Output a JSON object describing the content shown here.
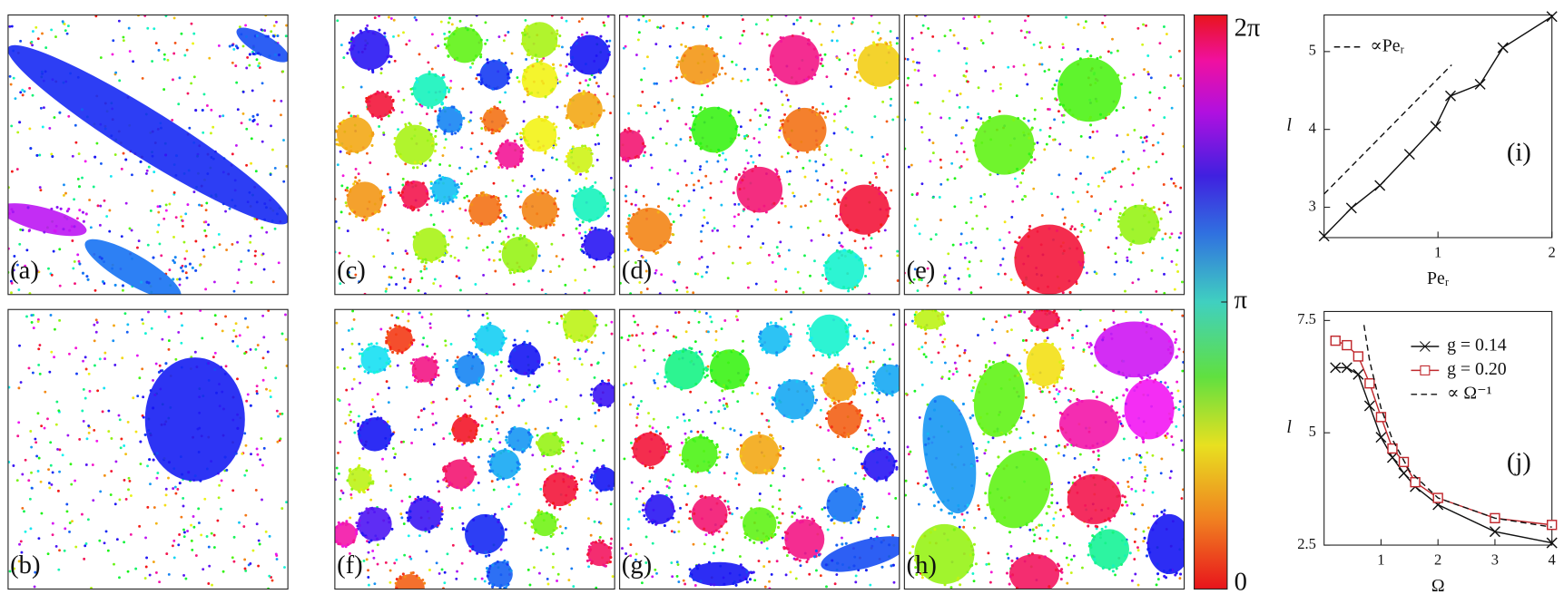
{
  "panels": [
    {
      "label": "(a)"
    },
    {
      "label": "(b)"
    },
    {
      "label": "(c)"
    },
    {
      "label": "(d)"
    },
    {
      "label": "(e)"
    },
    {
      "label": "(f)"
    },
    {
      "label": "(g)"
    },
    {
      "label": "(h)"
    }
  ],
  "colorbar": {
    "lim": [
      0,
      6.2832
    ],
    "ticks": [
      0,
      {
        "value": 3.1416,
        "label": "π"
      },
      {
        "value": 6.2832,
        "label": "2π"
      }
    ]
  },
  "chart_data": [
    {
      "type": "line",
      "xlabel": "Peᵣ",
      "ylabel": "l",
      "annotation": "(i)",
      "xlim": [
        0,
        2
      ],
      "ylim": [
        2.61,
        5.47
      ],
      "xticks": [
        1,
        2
      ],
      "yticks": [
        3,
        4,
        5
      ],
      "series": [
        {
          "color": "#111111",
          "marker": "x",
          "style": "solid",
          "x": [
            0,
            0.24,
            0.49,
            0.75,
            0.98,
            1.11,
            1.37,
            1.57,
            2.0
          ],
          "values": [
            2.63,
            2.99,
            3.28,
            3.68,
            4.04,
            4.43,
            4.58,
            5.05,
            5.45
          ]
        },
        {
          "name": "∝Peᵣ",
          "color": "#111111",
          "marker": "none",
          "style": "dashed",
          "x": [
            0,
            1.12
          ],
          "values": [
            3.17,
            4.83
          ]
        }
      ]
    },
    {
      "type": "line",
      "xlabel": "Ω",
      "ylabel": "l",
      "annotation": "(j)",
      "xlim": [
        0,
        4
      ],
      "ylim": [
        2.5,
        7.7
      ],
      "xticks": [
        1,
        2,
        3,
        4
      ],
      "yticks": [
        2.5,
        5,
        7.5
      ],
      "series": [
        {
          "name": "g = 0.14",
          "color": "#111111",
          "marker": "x",
          "style": "solid",
          "x": [
            0.2,
            0.4,
            0.6,
            0.8,
            1.0,
            1.2,
            1.4,
            1.6,
            2.0,
            3.0,
            4.0
          ],
          "values": [
            6.45,
            6.45,
            6.3,
            5.6,
            4.9,
            4.45,
            4.1,
            3.8,
            3.4,
            2.8,
            2.55
          ]
        },
        {
          "name": "g = 0.20",
          "color": "#c0282d",
          "marker": "square",
          "style": "solid",
          "x": [
            0.2,
            0.4,
            0.6,
            0.8,
            1.0,
            1.2,
            1.4,
            1.6,
            2.0,
            3.0,
            4.0
          ],
          "values": [
            7.05,
            6.95,
            6.7,
            6.1,
            5.35,
            4.65,
            4.35,
            3.9,
            3.55,
            3.1,
            2.95
          ]
        },
        {
          "name": "∝ Ω⁻¹",
          "color": "#111111",
          "marker": "none",
          "style": "dashed",
          "x": [
            0.7,
            0.8,
            1.0,
            1.2,
            1.5,
            2.0,
            3.0,
            4.0
          ],
          "values": [
            7.4,
            6.6,
            5.55,
            4.85,
            4.15,
            3.55,
            3.1,
            2.9
          ]
        }
      ]
    }
  ]
}
